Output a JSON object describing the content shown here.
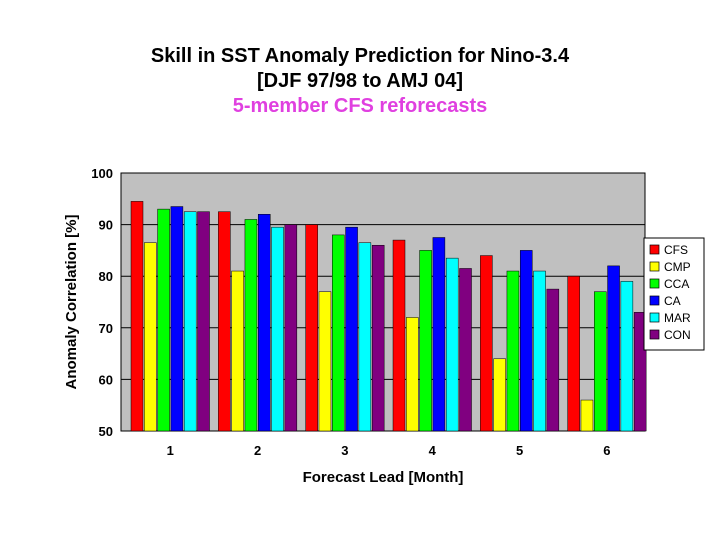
{
  "chart_data": {
    "type": "bar",
    "title": "Skill in SST Anomaly Prediction for Nino-3.4",
    "title_line2": "[DJF 97/98 to AMJ 04]",
    "subtitle": "5-member CFS reforecasts",
    "subtitle_color": "#e040e0",
    "xlabel": "Forecast Lead [Month]",
    "ylabel": "Anomaly Correlation [%]",
    "ylim": [
      50,
      100
    ],
    "yticks": [
      "50",
      "60",
      "70",
      "80",
      "90",
      "100"
    ],
    "categories": [
      "1",
      "2",
      "3",
      "4",
      "5",
      "6"
    ],
    "grid": "horizontal",
    "plot_background": "#c0c0c0",
    "legend_position": "right",
    "series": [
      {
        "name": "CFS",
        "color": "#ff0000",
        "values": [
          94.5,
          92.5,
          90,
          87,
          84,
          80
        ]
      },
      {
        "name": "CMP",
        "color": "#ffff00",
        "values": [
          86.5,
          81,
          77,
          72,
          64,
          56
        ]
      },
      {
        "name": "CCA",
        "color": "#00ff00",
        "values": [
          93,
          91,
          88,
          85,
          81,
          77
        ]
      },
      {
        "name": "CA",
        "color": "#0000ff",
        "values": [
          93.5,
          92,
          89.5,
          87.5,
          85,
          82
        ]
      },
      {
        "name": "MAR",
        "color": "#00ffff",
        "values": [
          92.5,
          89.5,
          86.5,
          83.5,
          81,
          79
        ]
      },
      {
        "name": "CON",
        "color": "#800080",
        "values": [
          92.5,
          90,
          86,
          81.5,
          77.5,
          73
        ]
      }
    ]
  }
}
